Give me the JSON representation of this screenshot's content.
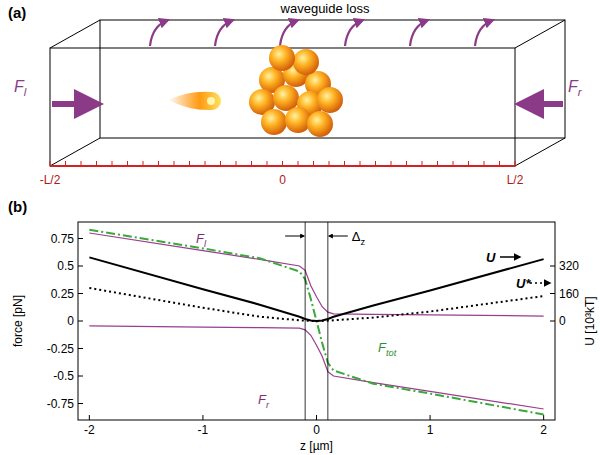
{
  "diagram": {
    "panel_label": "(a)",
    "title": "waveguide loss",
    "forces": [
      "Fl",
      "Fr"
    ],
    "ruler": [
      "-L/2",
      "0",
      "L/2"
    ]
  },
  "chart_data": {
    "type": "line",
    "panel_label": "(b)",
    "x_label": "z [µm]",
    "y_label": "force [pN]",
    "y2_label": "U [10³kT]",
    "x": [
      -2,
      -1,
      -0.5,
      -0.15,
      -0.1,
      -0.05,
      0,
      0.05,
      0.1,
      0.15,
      0.5,
      1,
      2
    ],
    "xlim": [
      -2.1,
      2.1
    ],
    "xticks": [
      -2,
      -1,
      0,
      1,
      2
    ],
    "ylim": [
      -0.9,
      0.9
    ],
    "yticks": [
      0.75,
      0.5,
      0.25,
      0,
      -0.25,
      -0.5,
      -0.75
    ],
    "y2lim": [
      -576,
      576
    ],
    "y2ticks": [
      0,
      160,
      320
    ],
    "annotations": [
      {
        "text": "Δz",
        "x": [
          -0.1,
          0.1
        ]
      }
    ],
    "series": [
      {
        "name": "Fl",
        "color": "#9a3d8e",
        "line_style": "solid",
        "values": [
          0.8,
          0.64,
          0.56,
          0.5,
          0.46,
          0.32,
          0.22,
          0.13,
          0.08,
          0.065,
          0.06,
          0.055,
          0.045
        ]
      },
      {
        "name": "Fr",
        "color": "#9a3d8e",
        "line_style": "solid",
        "values": [
          -0.045,
          -0.055,
          -0.06,
          -0.065,
          -0.08,
          -0.13,
          -0.22,
          -0.32,
          -0.46,
          -0.5,
          -0.56,
          -0.64,
          -0.8
        ]
      },
      {
        "name": "Ftot",
        "color": "#3aa83a",
        "line_style": "dashdot",
        "values": [
          0.83,
          0.66,
          0.57,
          0.45,
          0.38,
          0.2,
          0,
          -0.2,
          -0.38,
          -0.45,
          -0.57,
          -0.66,
          -0.85
        ]
      },
      {
        "name": "U",
        "color": "#000000",
        "line_style": "solid",
        "axis": "y2",
        "values": [
          370,
          185,
          95,
          25,
          12,
          3,
          0,
          3,
          12,
          25,
          90,
          178,
          360
        ]
      },
      {
        "name": "U*",
        "color": "#000000",
        "line_style": "dotted",
        "axis": "y2",
        "values": [
          192,
          77,
          25,
          4,
          2,
          0.5,
          0,
          0.5,
          2,
          4,
          20,
          55,
          145
        ]
      }
    ]
  }
}
